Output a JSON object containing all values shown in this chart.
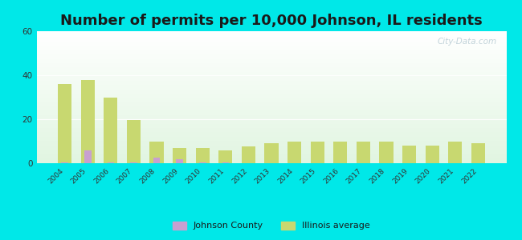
{
  "title": "Number of permits per 10,000 Johnson, IL residents",
  "years": [
    2004,
    2005,
    2006,
    2007,
    2008,
    2009,
    2010,
    2011,
    2012,
    2013,
    2014,
    2015,
    2016,
    2017,
    2018,
    2019,
    2020,
    2021,
    2022
  ],
  "illinois_avg": [
    36,
    38,
    30,
    19.5,
    10,
    7,
    7,
    6,
    7.5,
    9,
    10,
    10,
    10,
    10,
    10,
    8,
    8,
    10,
    9
  ],
  "johnson_county": [
    0.5,
    6,
    0.5,
    0.5,
    2.5,
    2,
    0.5,
    0.5,
    0,
    0,
    0,
    0,
    0,
    0,
    0,
    0,
    0,
    0,
    0
  ],
  "illinois_color": "#c8d870",
  "johnson_color": "#c8a0d0",
  "background_outer": "#00e8e8",
  "ylim": [
    0,
    60
  ],
  "yticks": [
    0,
    20,
    40,
    60
  ],
  "bar_width": 0.6,
  "title_fontsize": 13,
  "legend_labels": [
    "Johnson County",
    "Illinois average"
  ],
  "watermark": "City-Data.com"
}
